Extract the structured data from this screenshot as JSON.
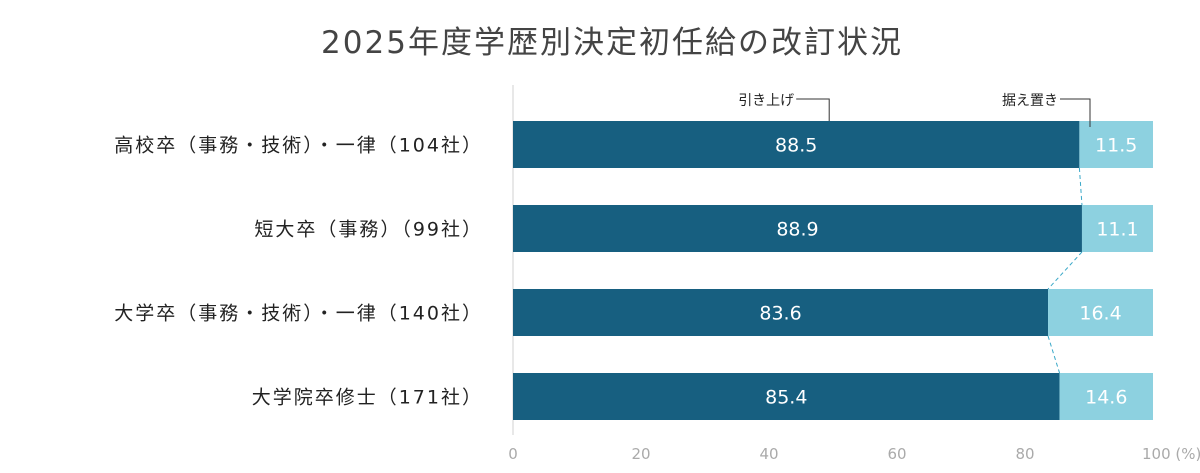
{
  "chart_data": {
    "type": "bar",
    "orientation": "horizontal",
    "stacked": true,
    "title": "2025年度学歴別決定初任給の改訂状況",
    "categories": [
      "高校卒（事務・技術）・一律（104社）",
      "短大卒（事務）（99社）",
      "大学卒（事務・技術）・一律（140社）",
      "大学院卒修士（171社）"
    ],
    "series": [
      {
        "name": "引き上げ",
        "values": [
          88.5,
          88.9,
          83.6,
          85.4
        ],
        "color": "#175f80"
      },
      {
        "name": "据え置き",
        "values": [
          11.5,
          11.1,
          16.4,
          14.6
        ],
        "color": "#8dd1e0"
      }
    ],
    "xlim": [
      0,
      100
    ],
    "xticks": [
      "0",
      "20",
      "40",
      "60",
      "80",
      "100 (%)"
    ],
    "grid": false,
    "legend": "callouts above first bar"
  }
}
